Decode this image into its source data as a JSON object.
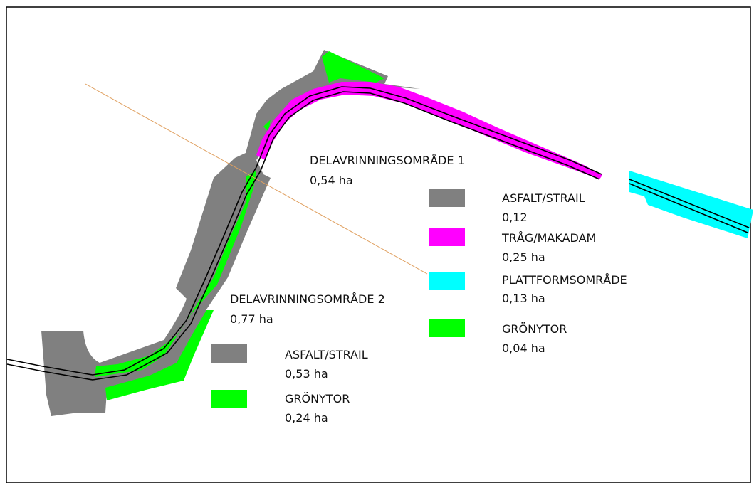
{
  "colors": {
    "asfalt": "#808080",
    "trag": "#ff00ff",
    "plattform": "#00ffff",
    "gron": "#00ff00",
    "track": "#000000",
    "boundary_line": "#e0a060",
    "frame": "#000000"
  },
  "area1": {
    "title": "DELAVRINNINGSOMRÅDE 1",
    "total": "0,54 ha",
    "legend": [
      {
        "key": "asfalt",
        "label": "ASFALT/STRAIL",
        "value": "0,12"
      },
      {
        "key": "trag",
        "label": "TRÅG/MAKADAM",
        "value": "0,25 ha"
      },
      {
        "key": "plattform",
        "label": "PLATTFORMSOMRÅDE",
        "value": "0,13 ha"
      },
      {
        "key": "gron",
        "label": "GRÖNYTOR",
        "value": "0,04 ha"
      }
    ]
  },
  "area2": {
    "title": "DELAVRINNINGSOMRÅDE 2",
    "total": "0,77 ha",
    "legend": [
      {
        "key": "asfalt",
        "label": "ASFALT/STRAIL",
        "value": "0,53 ha"
      },
      {
        "key": "gron",
        "label": "GRÖNYTOR",
        "value": "0,24 ha"
      }
    ]
  }
}
